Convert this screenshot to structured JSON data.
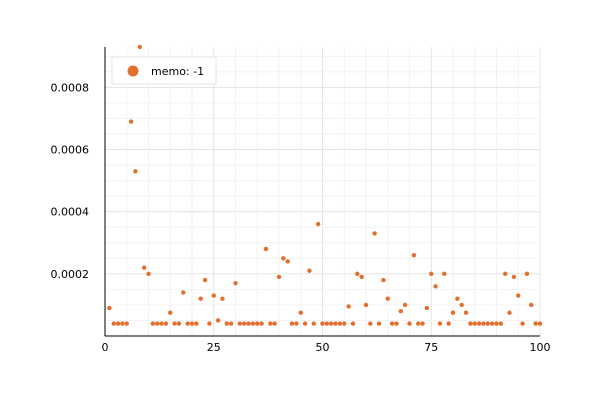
{
  "chart_data": {
    "type": "scatter",
    "title": "",
    "xlabel": "",
    "ylabel": "",
    "xlim": [
      0,
      100
    ],
    "ylim": [
      0,
      0.00093
    ],
    "grid": true,
    "legend_position": "top-left",
    "x_ticks": [
      {
        "value": 0,
        "label": "0"
      },
      {
        "value": 25,
        "label": "25"
      },
      {
        "value": 50,
        "label": "50"
      },
      {
        "value": 75,
        "label": "75"
      },
      {
        "value": 100,
        "label": "100"
      }
    ],
    "y_ticks": [
      {
        "value": 0.0002,
        "label": "0.0002"
      },
      {
        "value": 0.0004,
        "label": "0.0004"
      },
      {
        "value": 0.0006,
        "label": "0.0006"
      },
      {
        "value": 0.0008,
        "label": "0.0008"
      }
    ],
    "series": [
      {
        "name": "memo: -1",
        "color": "#e26f2e",
        "x": [
          1,
          2,
          3,
          4,
          5,
          6,
          7,
          8,
          9,
          10,
          11,
          12,
          13,
          14,
          15,
          16,
          17,
          18,
          19,
          20,
          21,
          22,
          23,
          24,
          25,
          26,
          27,
          28,
          29,
          30,
          31,
          32,
          33,
          34,
          35,
          36,
          37,
          38,
          39,
          40,
          41,
          42,
          43,
          44,
          45,
          46,
          47,
          48,
          49,
          50,
          51,
          52,
          53,
          54,
          55,
          56,
          57,
          58,
          59,
          60,
          61,
          62,
          63,
          64,
          65,
          66,
          67,
          68,
          69,
          70,
          71,
          72,
          73,
          74,
          75,
          76,
          77,
          78,
          79,
          80,
          81,
          82,
          83,
          84,
          85,
          86,
          87,
          88,
          89,
          90,
          91,
          92,
          93,
          94,
          95,
          96,
          97,
          98,
          99,
          100
        ],
        "y": [
          9e-05,
          4e-05,
          4e-05,
          4e-05,
          4e-05,
          0.00069,
          0.00053,
          0.00093,
          0.00022,
          0.0002,
          4e-05,
          4e-05,
          4e-05,
          4e-05,
          7.5e-05,
          4e-05,
          4e-05,
          0.00014,
          4e-05,
          4e-05,
          4e-05,
          0.00012,
          0.00018,
          4e-05,
          0.00013,
          5e-05,
          0.00012,
          4e-05,
          4e-05,
          0.00017,
          4e-05,
          4e-05,
          4e-05,
          4e-05,
          4e-05,
          4e-05,
          0.00028,
          4e-05,
          4e-05,
          0.00019,
          0.00025,
          0.00024,
          4e-05,
          4e-05,
          7.5e-05,
          4e-05,
          0.00021,
          4e-05,
          0.00036,
          4e-05,
          4e-05,
          4e-05,
          4e-05,
          4e-05,
          4e-05,
          9.5e-05,
          4e-05,
          0.0002,
          0.00019,
          0.0001,
          4e-05,
          0.00033,
          4e-05,
          0.00018,
          0.00012,
          4e-05,
          4e-05,
          8e-05,
          0.0001,
          4e-05,
          0.00026,
          4e-05,
          4e-05,
          9e-05,
          0.0002,
          0.00016,
          4e-05,
          0.0002,
          4e-05,
          7.5e-05,
          0.00012,
          0.0001,
          7.5e-05,
          4e-05,
          4e-05,
          4e-05,
          4e-05,
          4e-05,
          4e-05,
          4e-05,
          4e-05,
          0.0002,
          7.5e-05,
          0.00019,
          0.00013,
          4e-05,
          0.0002,
          0.0001,
          4e-05,
          4e-05
        ]
      }
    ]
  }
}
